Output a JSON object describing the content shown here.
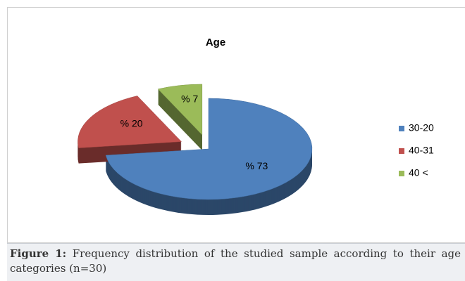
{
  "chart_data": {
    "type": "pie",
    "title": "Age",
    "categories": [
      "30-20",
      "40-31",
      "40 <"
    ],
    "values": [
      73,
      20,
      7
    ],
    "value_labels": [
      "% 73",
      "% 20",
      "% 7"
    ],
    "colors": [
      "#4f81bd",
      "#c0504d",
      "#9bbb59"
    ],
    "legend": "right"
  },
  "caption": {
    "label": "Figure 1:",
    "text": "Frequency distribution of the studied sample according to their age categories (n=30)"
  }
}
